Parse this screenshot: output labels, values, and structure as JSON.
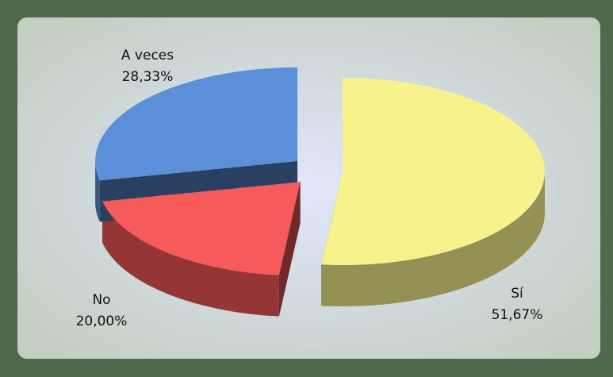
{
  "chart_data": {
    "type": "pie",
    "categories": [
      "Sí",
      "No",
      "A veces"
    ],
    "values": [
      51.67,
      20.0,
      28.33
    ],
    "value_labels": [
      "51,67%",
      "20,00%",
      "28,33%"
    ],
    "colors": [
      "#f7f28c",
      "#f65a5a",
      "#5b8fd8"
    ]
  }
}
